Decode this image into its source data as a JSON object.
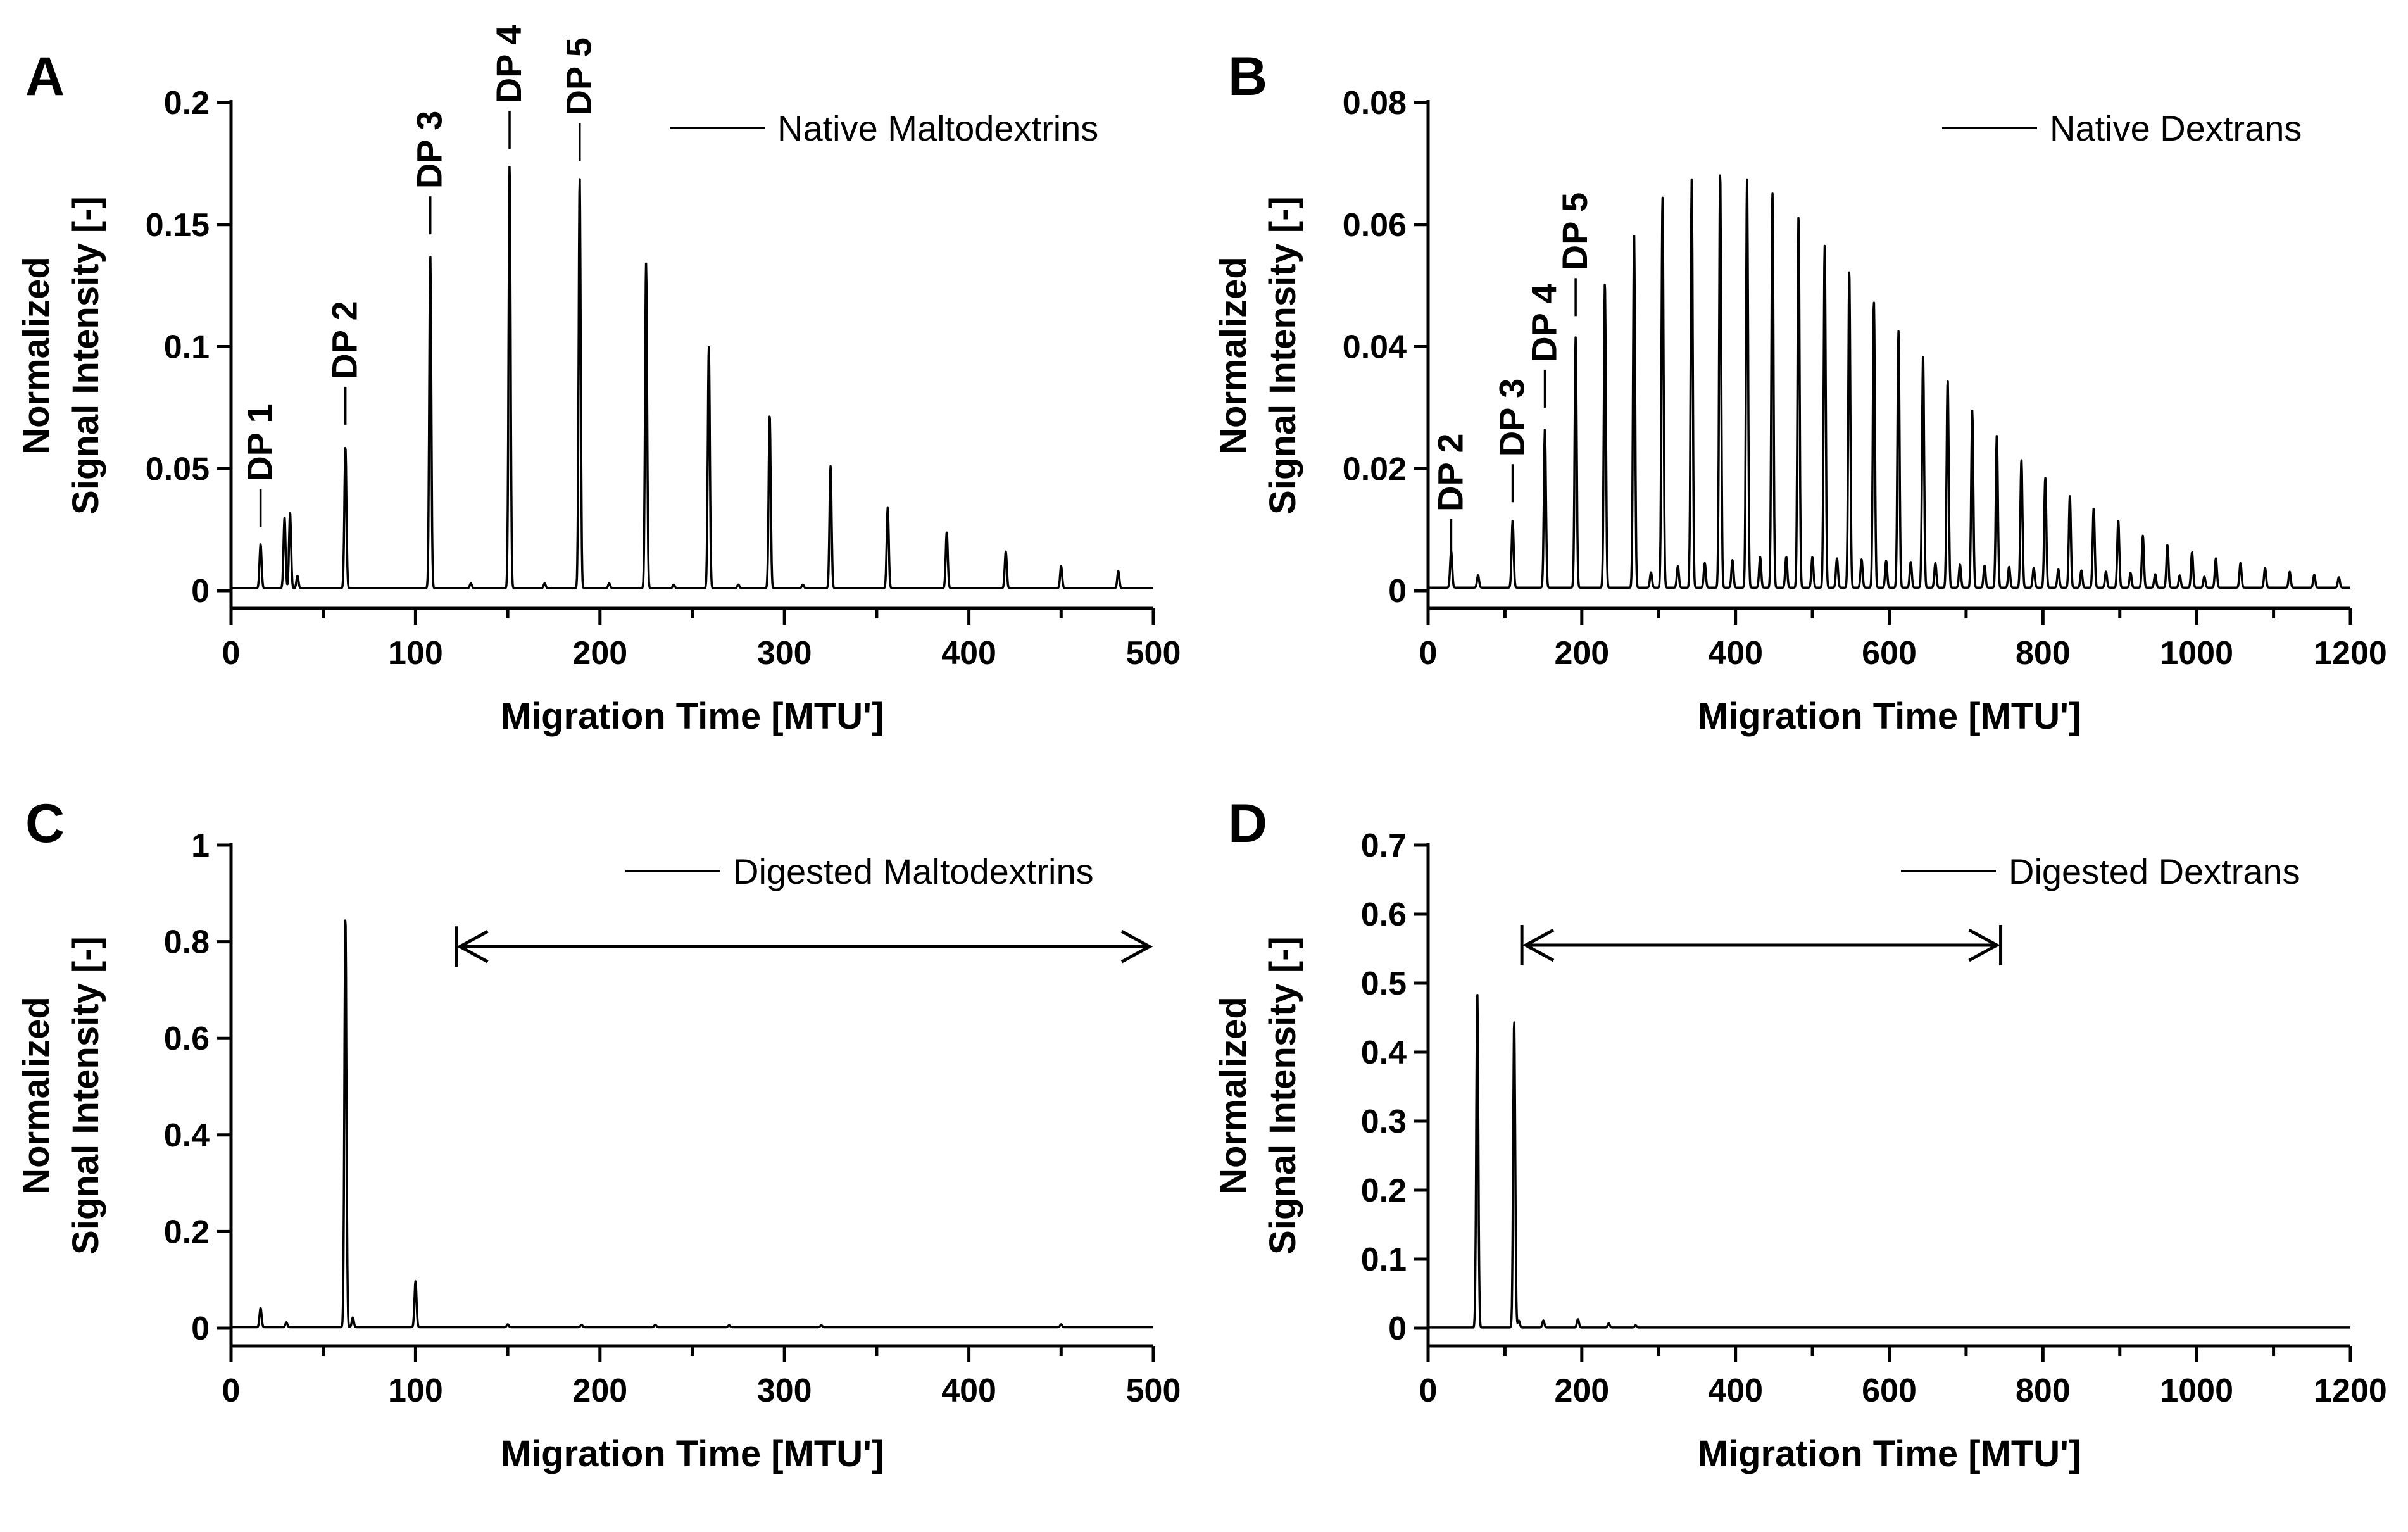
{
  "chart_data": [
    {
      "panel": "A",
      "type": "line",
      "legend": "Native  Maltodextrins",
      "xlabel": "Migration  Time  [MTU']",
      "ylabel_line1": "Normalized",
      "ylabel_line2": "Signal  Intensity  [-]",
      "xlim": [
        0,
        500
      ],
      "ylim": [
        0,
        0.2
      ],
      "xticks": [
        0,
        100,
        200,
        300,
        400,
        500
      ],
      "xtick_labels": [
        "0",
        "100",
        "200",
        "300",
        "400",
        "500"
      ],
      "yticks": [
        0,
        0.05,
        0.1,
        0.15,
        0.2
      ],
      "ytick_labels": [
        "0",
        "0.05",
        "0.1",
        "0.15",
        "0.2"
      ],
      "baseline": 0.001,
      "peaks": [
        [
          16,
          0.018
        ],
        [
          29,
          0.029
        ],
        [
          32,
          0.031
        ],
        [
          36,
          0.005
        ],
        [
          62,
          0.058
        ],
        [
          108,
          0.137
        ],
        [
          151,
          0.173
        ],
        [
          189,
          0.168
        ],
        [
          225,
          0.133
        ],
        [
          259,
          0.099
        ],
        [
          292,
          0.071
        ],
        [
          325,
          0.05
        ],
        [
          356,
          0.033
        ],
        [
          388,
          0.023
        ],
        [
          420,
          0.015
        ],
        [
          450,
          0.009
        ],
        [
          481,
          0.007
        ],
        [
          130,
          0.002
        ],
        [
          170,
          0.002
        ],
        [
          205,
          0.002
        ],
        [
          240,
          0.0015
        ],
        [
          275,
          0.0015
        ],
        [
          310,
          0.0015
        ]
      ],
      "annotations": [
        {
          "text": "DP 1",
          "x": 16,
          "y": 0.026
        },
        {
          "text": "DP 2",
          "x": 62,
          "y": 0.068
        },
        {
          "text": "DP 3",
          "x": 108,
          "y": 0.146
        },
        {
          "text": "DP 4",
          "x": 151,
          "y": 0.181
        },
        {
          "text": "DP 5",
          "x": 189,
          "y": 0.176
        }
      ]
    },
    {
      "panel": "B",
      "type": "line",
      "legend": "Native  Dextrans",
      "xlabel": "Migration  Time  [MTU']",
      "ylabel_line1": "Normalized",
      "ylabel_line2": "Signal  Intensity  [-]",
      "xlim": [
        0,
        1200
      ],
      "ylim": [
        0,
        0.08
      ],
      "xticks": [
        0,
        200,
        400,
        600,
        800,
        1000,
        1200
      ],
      "xtick_labels": [
        "0",
        "200",
        "400",
        "600",
        "800",
        "1000",
        "1200"
      ],
      "yticks": [
        0,
        0.02,
        0.04,
        0.06,
        0.08
      ],
      "ytick_labels": [
        "0",
        "0.02",
        "0.04",
        "0.06",
        "0.08"
      ],
      "baseline": 0.0005,
      "peaks": [
        [
          30,
          0.006
        ],
        [
          65,
          0.002
        ],
        [
          110,
          0.011
        ],
        [
          152,
          0.026
        ],
        [
          192,
          0.041
        ],
        [
          230,
          0.05
        ],
        [
          268,
          0.058
        ],
        [
          305,
          0.064
        ],
        [
          343,
          0.067
        ],
        [
          380,
          0.068
        ],
        [
          415,
          0.067
        ],
        [
          448,
          0.065
        ],
        [
          482,
          0.061
        ],
        [
          516,
          0.056
        ],
        [
          548,
          0.052
        ],
        [
          580,
          0.047
        ],
        [
          612,
          0.042
        ],
        [
          644,
          0.038
        ],
        [
          676,
          0.034
        ],
        [
          708,
          0.029
        ],
        [
          740,
          0.025
        ],
        [
          772,
          0.021
        ],
        [
          803,
          0.018
        ],
        [
          835,
          0.015
        ],
        [
          866,
          0.013
        ],
        [
          898,
          0.011
        ],
        [
          930,
          0.0085
        ],
        [
          962,
          0.007
        ],
        [
          994,
          0.0058
        ],
        [
          1025,
          0.0048
        ],
        [
          1057,
          0.004
        ],
        [
          1089,
          0.0032
        ],
        [
          1121,
          0.0026
        ],
        [
          1153,
          0.0021
        ],
        [
          1185,
          0.0017
        ],
        [
          290,
          0.0025
        ],
        [
          325,
          0.0035
        ],
        [
          360,
          0.004
        ],
        [
          396,
          0.0045
        ],
        [
          432,
          0.005
        ],
        [
          466,
          0.005
        ],
        [
          500,
          0.005
        ],
        [
          532,
          0.0048
        ],
        [
          564,
          0.0046
        ],
        [
          596,
          0.0044
        ],
        [
          628,
          0.0042
        ],
        [
          660,
          0.004
        ],
        [
          692,
          0.0038
        ],
        [
          724,
          0.0036
        ],
        [
          756,
          0.0034
        ],
        [
          788,
          0.0032
        ],
        [
          820,
          0.003
        ],
        [
          850,
          0.0028
        ],
        [
          882,
          0.0026
        ],
        [
          914,
          0.0024
        ],
        [
          946,
          0.0022
        ],
        [
          978,
          0.002
        ],
        [
          1010,
          0.0018
        ]
      ],
      "annotations": [
        {
          "text": "DP 2",
          "x": 30,
          "y": 0.0055
        },
        {
          "text": "DP 3",
          "x": 110,
          "y": 0.0145
        },
        {
          "text": "DP 4",
          "x": 152,
          "y": 0.03
        },
        {
          "text": "DP 5",
          "x": 192,
          "y": 0.045
        }
      ]
    },
    {
      "panel": "C",
      "type": "line",
      "legend": "Digested  Maltodextrins",
      "xlabel": "Migration  Time  [MTU']",
      "ylabel_line1": "Normalized",
      "ylabel_line2": "Signal  Intensity  [-]",
      "xlim": [
        0,
        500
      ],
      "ylim": [
        0,
        1
      ],
      "xticks": [
        0,
        100,
        200,
        300,
        400,
        500
      ],
      "xtick_labels": [
        "0",
        "100",
        "200",
        "300",
        "400",
        "500"
      ],
      "yticks": [
        0,
        0.2,
        0.4,
        0.6,
        0.8,
        1
      ],
      "ytick_labels": [
        "0",
        "0.2",
        "0.4",
        "0.6",
        "0.8",
        "1"
      ],
      "baseline": 0.002,
      "peaks": [
        [
          16,
          0.04
        ],
        [
          30,
          0.01
        ],
        [
          62,
          0.85
        ],
        [
          66,
          0.02
        ],
        [
          100,
          0.095
        ],
        [
          150,
          0.006
        ],
        [
          190,
          0.005
        ],
        [
          230,
          0.005
        ],
        [
          270,
          0.004
        ],
        [
          320,
          0.004
        ],
        [
          450,
          0.006
        ]
      ],
      "range_arrow": {
        "x_start": 122,
        "x_end": 500,
        "y": 0.79
      }
    },
    {
      "panel": "D",
      "type": "line",
      "legend": "Digested  Dextrans",
      "xlabel": "Migration  Time  [MTU']",
      "ylabel_line1": "Normalized",
      "ylabel_line2": "Signal  Intensity  [-]",
      "xlim": [
        0,
        1200
      ],
      "ylim": [
        0,
        0.7
      ],
      "xticks": [
        0,
        200,
        400,
        600,
        800,
        1000,
        1200
      ],
      "xtick_labels": [
        "0",
        "200",
        "400",
        "600",
        "800",
        "1000",
        "1200"
      ],
      "yticks": [
        0,
        0.1,
        0.2,
        0.3,
        0.4,
        0.5,
        0.6,
        0.7
      ],
      "ytick_labels": [
        "0",
        "0.1",
        "0.2",
        "0.3",
        "0.4",
        "0.5",
        "0.6",
        "0.7"
      ],
      "baseline": 0.001,
      "peaks": [
        [
          64,
          0.485
        ],
        [
          112,
          0.445
        ],
        [
          118,
          0.01
        ],
        [
          150,
          0.01
        ],
        [
          195,
          0.012
        ],
        [
          235,
          0.006
        ],
        [
          270,
          0.003
        ]
      ],
      "range_arrow": {
        "x_start": 122,
        "x_end": 745,
        "y": 0.555
      }
    }
  ]
}
